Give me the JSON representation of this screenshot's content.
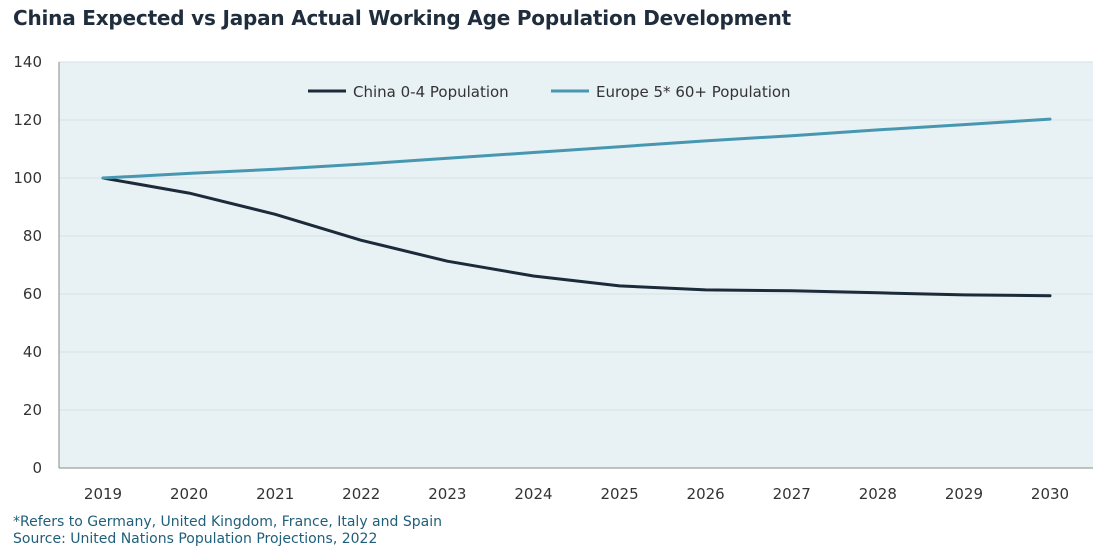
{
  "title": "China Expected vs Japan Actual Working Age Population Development",
  "footnotes": {
    "note": "*Refers to Germany, United Kingdom, France, Italy and Spain",
    "source": "Source: United Nations Population Projections, 2022"
  },
  "colors": {
    "plot_background": "#e8f1f4",
    "grid": "#d3e2e8",
    "axis": "#8a8a8a",
    "china": "#1c2b3a",
    "europe": "#4797b1"
  },
  "chart_data": {
    "type": "line",
    "title": "China Expected vs Japan Actual Working Age Population Development",
    "xlabel": "",
    "ylabel": "",
    "categories": [
      "2019",
      "2020",
      "2021",
      "2022",
      "2023",
      "2024",
      "2025",
      "2026",
      "2027",
      "2028",
      "2029",
      "2030"
    ],
    "ylim": [
      0,
      140
    ],
    "yticks": [
      0,
      20,
      40,
      60,
      80,
      100,
      120,
      140
    ],
    "grid": true,
    "legend_position": "top-center",
    "series": [
      {
        "name": "China 0-4 Population",
        "color": "#1c2b3a",
        "values": [
          100,
          94.8,
          87.5,
          78.5,
          71.3,
          66.2,
          62.8,
          61.4,
          61.1,
          60.4,
          59.7,
          59.4
        ]
      },
      {
        "name": "Europe 5* 60+ Population",
        "color": "#4797b1",
        "values": [
          100,
          101.6,
          103.0,
          104.8,
          106.8,
          108.8,
          110.8,
          112.8,
          114.6,
          116.6,
          118.4,
          120.3
        ]
      }
    ]
  }
}
